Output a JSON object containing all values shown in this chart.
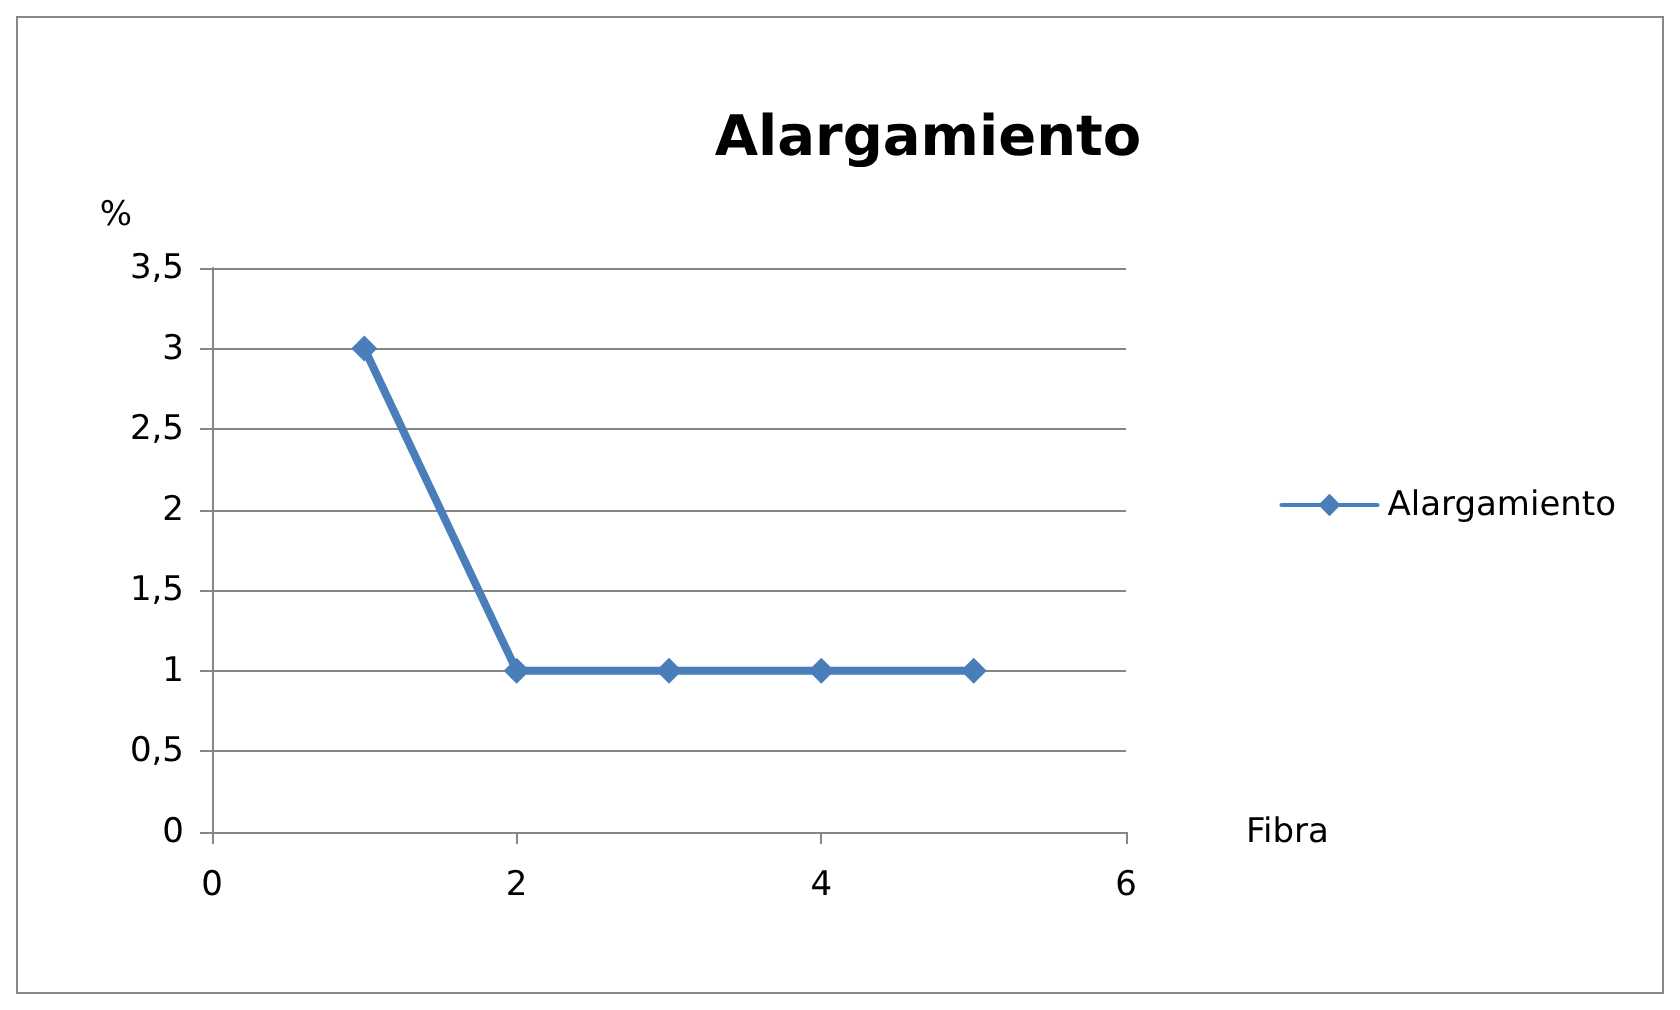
{
  "chart_data": {
    "type": "line",
    "title": "Alargamiento",
    "xlabel": "Fibra",
    "ylabel": "%",
    "x": [
      1,
      2,
      3,
      4,
      5
    ],
    "series": [
      {
        "name": "Alargamiento",
        "color": "#4a7ebb",
        "values": [
          3,
          1,
          1,
          1,
          1
        ]
      }
    ],
    "xlim": [
      0,
      6
    ],
    "xticks": [
      0,
      2,
      4,
      6
    ],
    "ylim": [
      0,
      3.5
    ],
    "yticks": [
      0,
      {
        "value": 0.5,
        "label": "0,5"
      },
      1,
      {
        "value": 1.5,
        "label": "1,5"
      },
      2,
      {
        "value": 2.5,
        "label": "2,5"
      },
      3,
      {
        "value": 3.5,
        "label": "3,5"
      }
    ],
    "grid": "y",
    "legend": "right",
    "marker": "diamond",
    "line_style": "solid"
  }
}
